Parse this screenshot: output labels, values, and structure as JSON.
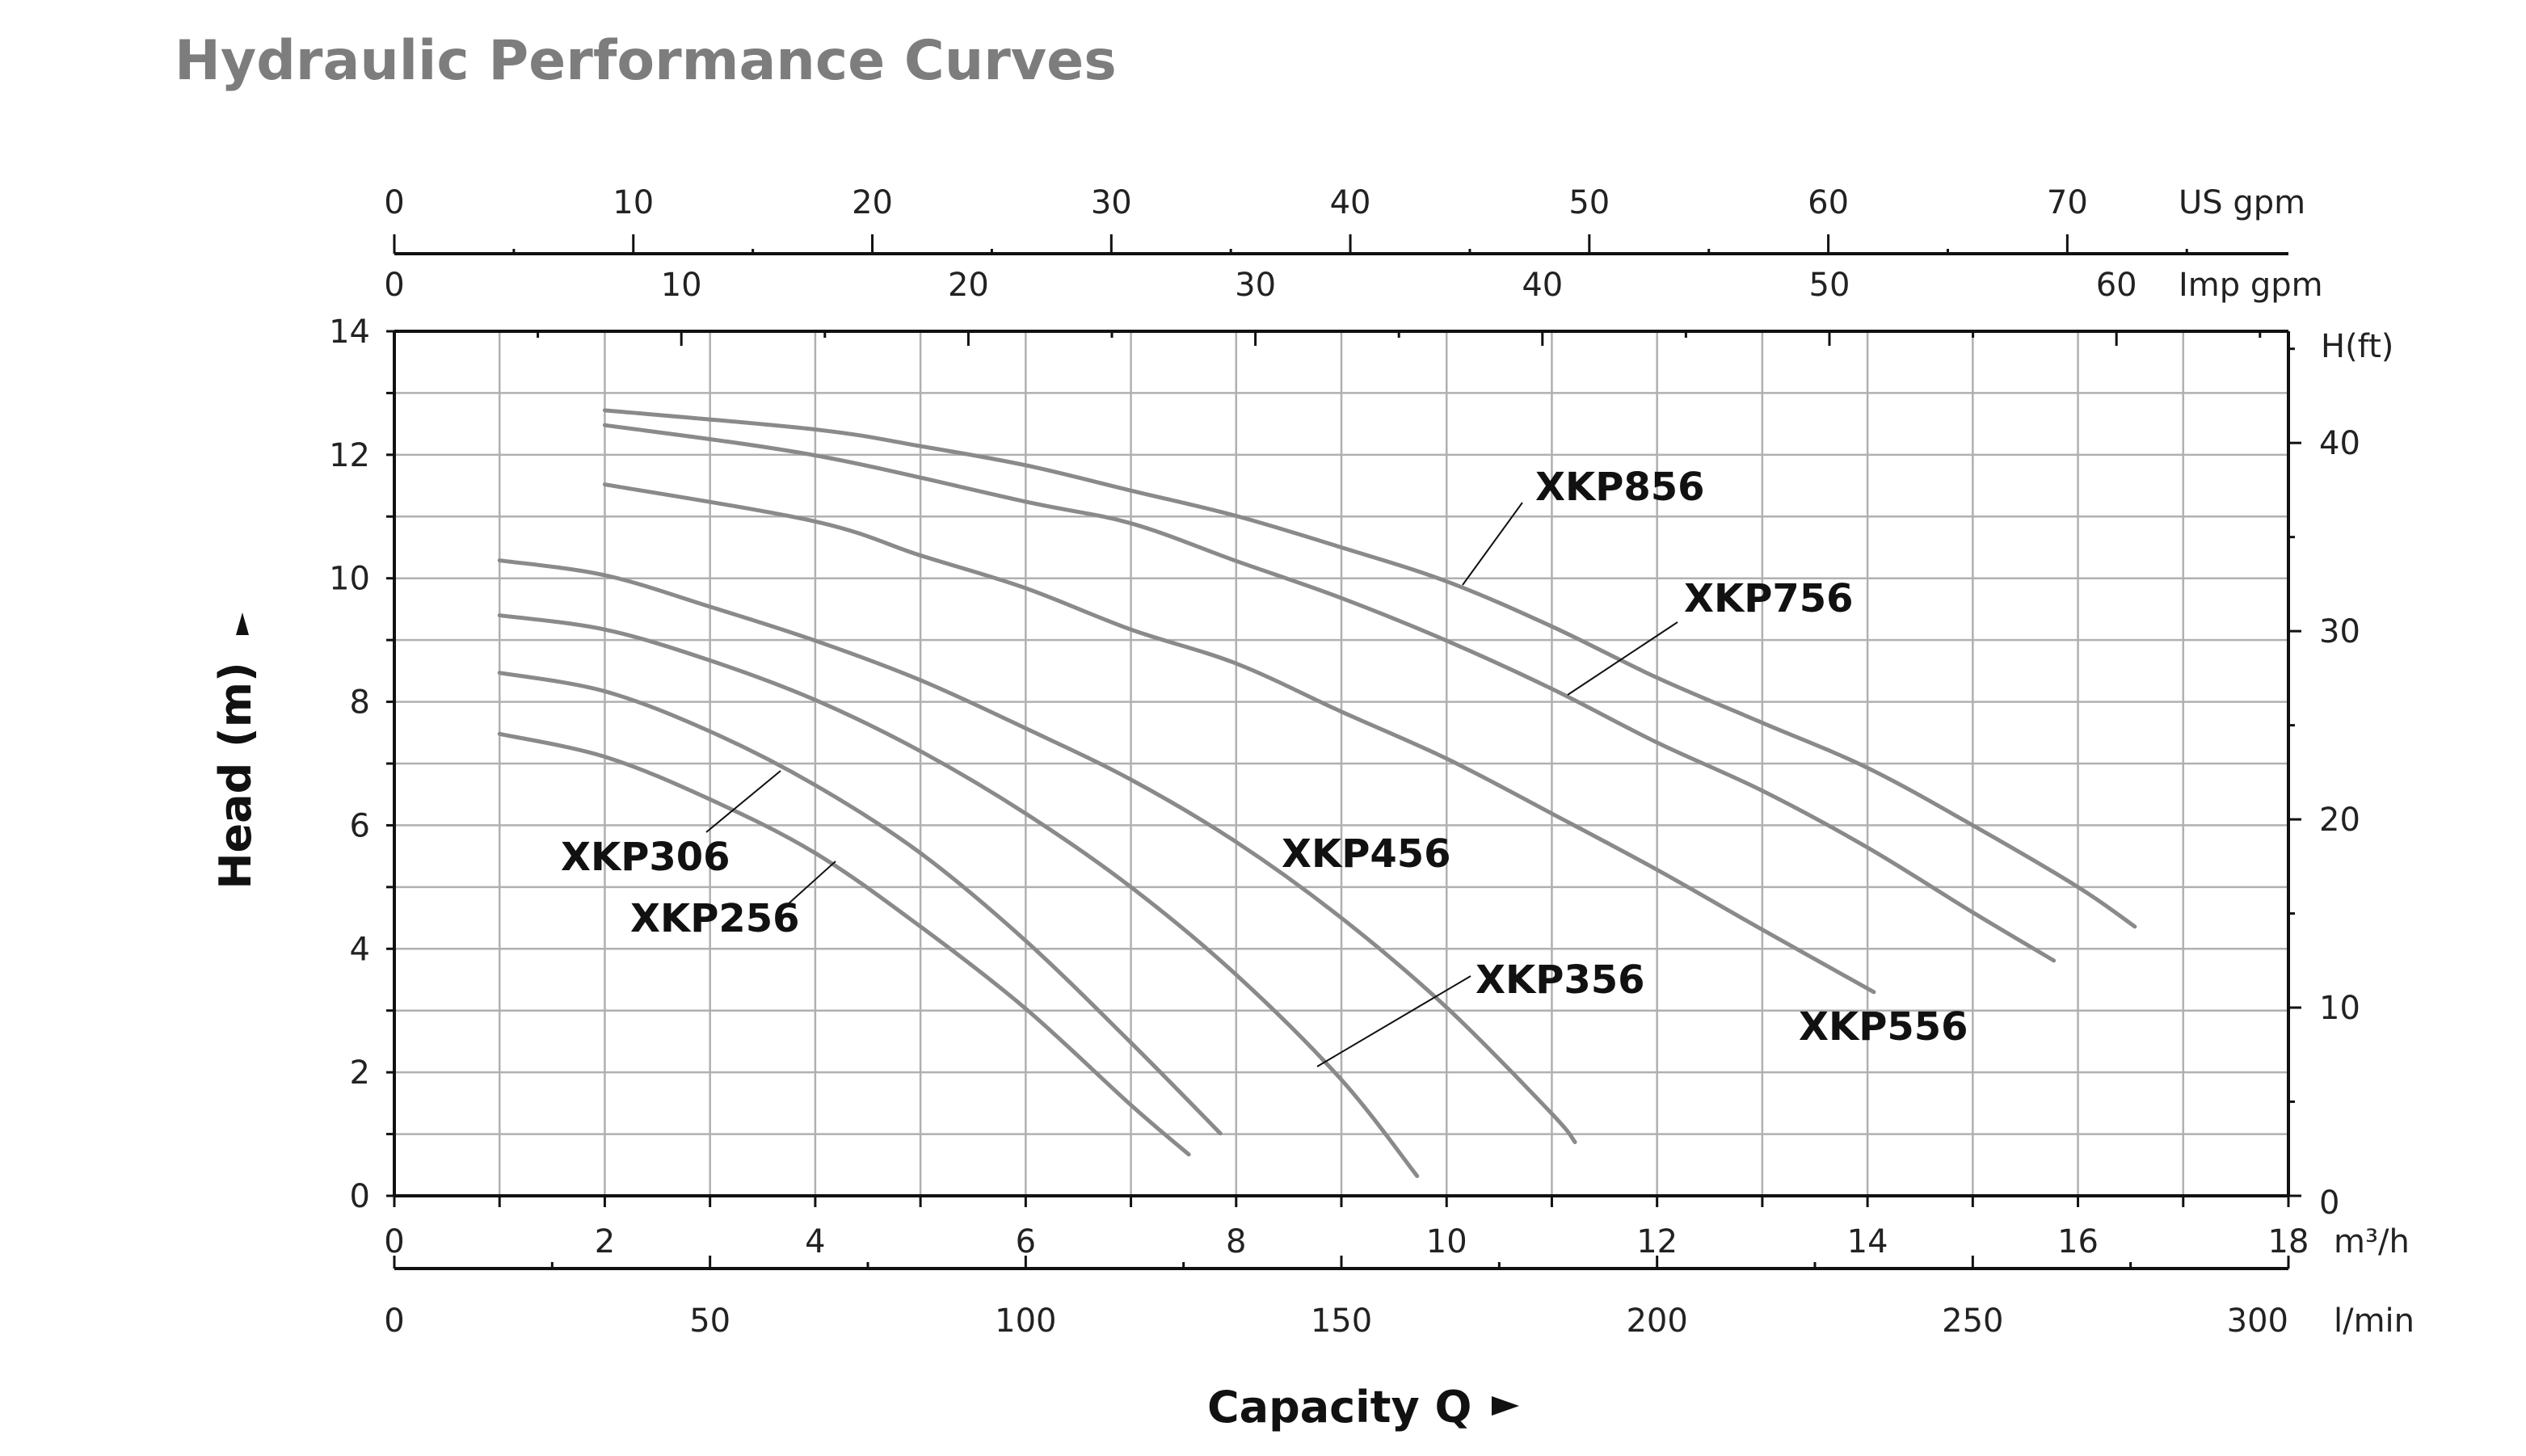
{
  "chart_data": {
    "type": "line",
    "title": "Hydraulic Performance Curves",
    "xlabel": "Capacity Q",
    "ylabel": "Head (m)",
    "xlim": [
      0,
      18
    ],
    "ylim": [
      0,
      14
    ],
    "grid": true,
    "x_unit": "m³/h",
    "x_ticks": [
      0,
      2,
      4,
      6,
      8,
      10,
      12,
      14,
      16,
      18
    ],
    "y_ticks": [
      0,
      2,
      4,
      6,
      8,
      10,
      12,
      14
    ],
    "secondary_axes": {
      "us_gpm": {
        "unit": "US gpm",
        "ticks": [
          0,
          10,
          20,
          30,
          40,
          50,
          60,
          70
        ]
      },
      "imp_gpm": {
        "unit": "Imp gpm",
        "ticks": [
          0,
          10,
          20,
          30,
          40,
          50,
          60
        ]
      },
      "l_min": {
        "unit": "l/min",
        "ticks": [
          0,
          50,
          100,
          150,
          200,
          250,
          300
        ]
      },
      "h_ft": {
        "unit": "H(ft)",
        "ticks": [
          0,
          10,
          20,
          30,
          40
        ]
      }
    },
    "series": [
      {
        "name": "XKP856",
        "points": [
          [
            2,
            12.72
          ],
          [
            4,
            12.41
          ],
          [
            5,
            12.14
          ],
          [
            6,
            11.83
          ],
          [
            7,
            11.42
          ],
          [
            8,
            11.01
          ],
          [
            9,
            10.5
          ],
          [
            10,
            9.95
          ],
          [
            11,
            9.22
          ],
          [
            12,
            8.39
          ],
          [
            13,
            7.66
          ],
          [
            14,
            6.93
          ],
          [
            15,
            6.0
          ],
          [
            16,
            5.0
          ],
          [
            16.54,
            4.36
          ]
        ]
      },
      {
        "name": "XKP756",
        "points": [
          [
            2,
            12.48
          ],
          [
            4,
            11.99
          ],
          [
            6,
            11.24
          ],
          [
            7,
            10.89
          ],
          [
            8,
            10.28
          ],
          [
            9,
            9.68
          ],
          [
            10,
            8.99
          ],
          [
            11,
            8.21
          ],
          [
            12,
            7.34
          ],
          [
            13,
            6.56
          ],
          [
            14,
            5.64
          ],
          [
            15,
            4.59
          ],
          [
            15.77,
            3.81
          ]
        ]
      },
      {
        "name": "XKP556",
        "points": [
          [
            2,
            11.52
          ],
          [
            4,
            10.92
          ],
          [
            5,
            10.37
          ],
          [
            6,
            9.84
          ],
          [
            7,
            9.17
          ],
          [
            8,
            8.62
          ],
          [
            9,
            7.84
          ],
          [
            10,
            7.08
          ],
          [
            11,
            6.19
          ],
          [
            12,
            5.28
          ],
          [
            13,
            4.31
          ],
          [
            14.06,
            3.3
          ]
        ]
      },
      {
        "name": "XKP456",
        "points": [
          [
            1,
            10.29
          ],
          [
            2,
            10.05
          ],
          [
            3,
            9.54
          ],
          [
            4,
            8.99
          ],
          [
            5,
            8.35
          ],
          [
            6,
            7.57
          ],
          [
            7,
            6.74
          ],
          [
            8,
            5.73
          ],
          [
            9,
            4.5
          ],
          [
            10,
            3.05
          ],
          [
            11,
            1.33
          ],
          [
            11.22,
            0.87
          ]
        ]
      },
      {
        "name": "XKP356",
        "points": [
          [
            1,
            9.4
          ],
          [
            2,
            9.17
          ],
          [
            3,
            8.67
          ],
          [
            4,
            8.03
          ],
          [
            5,
            7.2
          ],
          [
            6,
            6.19
          ],
          [
            7,
            5.0
          ],
          [
            8,
            3.58
          ],
          [
            9,
            1.88
          ],
          [
            9.72,
            0.32
          ]
        ]
      },
      {
        "name": "XKP306",
        "points": [
          [
            1,
            8.47
          ],
          [
            2,
            8.17
          ],
          [
            3,
            7.52
          ],
          [
            4,
            6.65
          ],
          [
            5,
            5.55
          ],
          [
            6,
            4.13
          ],
          [
            7,
            2.48
          ],
          [
            7.85,
            1.01
          ]
        ]
      },
      {
        "name": "XKP256",
        "points": [
          [
            1,
            7.48
          ],
          [
            2,
            7.11
          ],
          [
            3,
            6.42
          ],
          [
            4,
            5.55
          ],
          [
            5,
            4.36
          ],
          [
            6,
            3.03
          ],
          [
            7,
            1.47
          ],
          [
            7.55,
            0.67
          ]
        ]
      }
    ],
    "colors": {
      "curve": "#8a8a8a",
      "grid": "#b0b0b0",
      "axis": "#111111",
      "title": "#7d7d7d"
    },
    "head_arrow_icon": "up-triangle",
    "capacity_arrow_icon": "right-triangle"
  }
}
